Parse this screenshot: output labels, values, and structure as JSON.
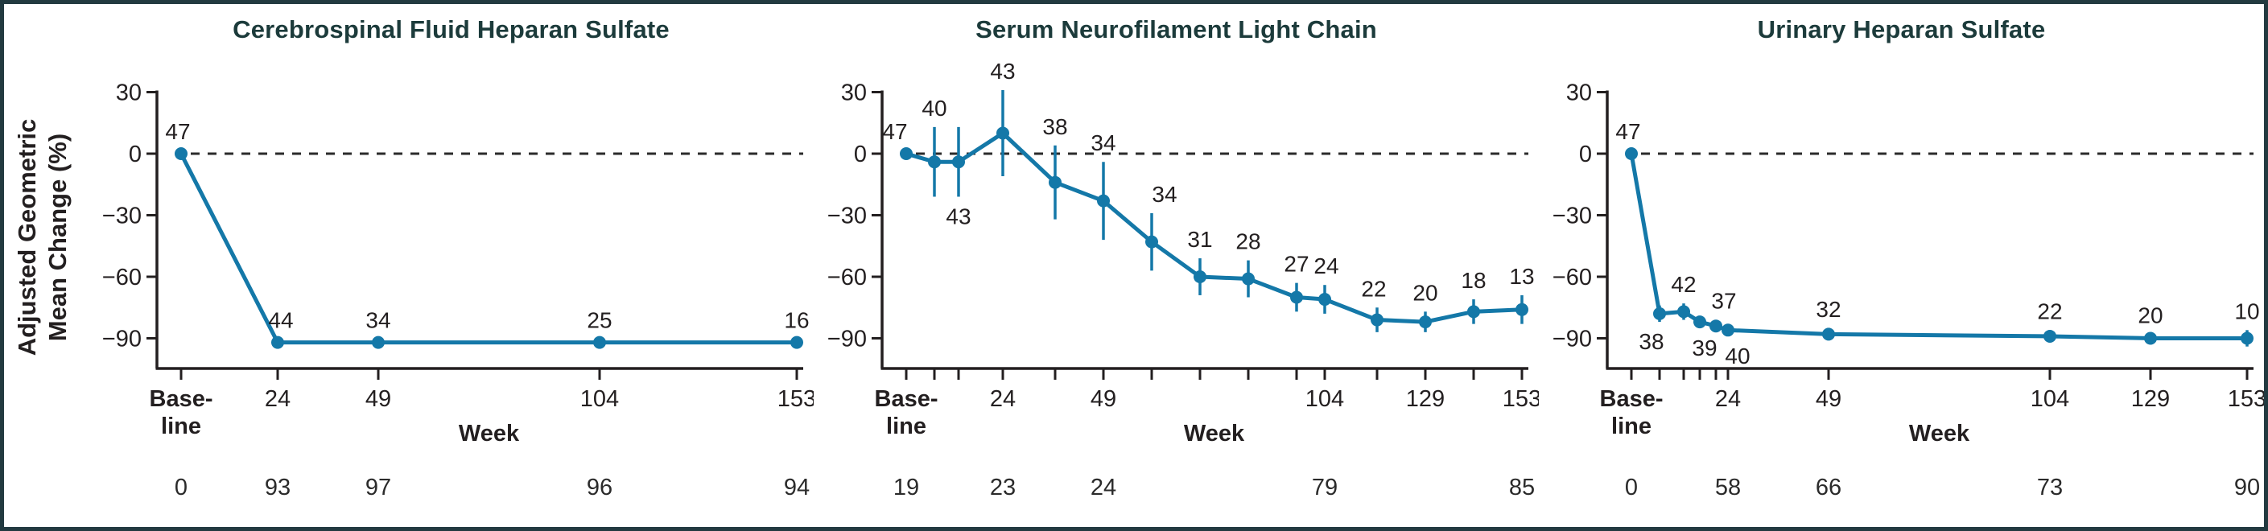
{
  "figure": {
    "y_axis_label_line1": "Adjusted Geometric",
    "y_axis_label_line2": "Mean Change (%)",
    "week_axis_label": "Week",
    "baseline_label_line1": "Base-",
    "baseline_label_line2": "line",
    "colors": {
      "line": "#1478a8",
      "text": "#231f20",
      "title": "#1c3b3b",
      "frame": "#223a40",
      "dashed": "#2b2b2b",
      "bottom_text": "#2b2b2b"
    },
    "y_ticks": [
      {
        "value": 30,
        "label": "30"
      },
      {
        "value": 0,
        "label": "0"
      },
      {
        "value": -30,
        "label": "−30"
      },
      {
        "value": -60,
        "label": "−60"
      },
      {
        "value": -90,
        "label": "−90"
      }
    ]
  },
  "chart_data": [
    {
      "type": "line",
      "title": "Cerebrospinal Fluid Heparan Sulfate",
      "xlabel": "Week",
      "ylabel": "Adjusted Geometric Mean Change (%)",
      "ylim": [
        -105,
        40
      ],
      "xlim": [
        0,
        153
      ],
      "x_ticks_labeled": [
        {
          "week": 0,
          "label": "Base-line"
        },
        {
          "week": 24,
          "label": "24"
        },
        {
          "week": 49,
          "label": "49"
        },
        {
          "week": 104,
          "label": "104"
        },
        {
          "week": 153,
          "label": "153"
        }
      ],
      "x_ticks_minor": [],
      "points": [
        {
          "week": 0,
          "value": 0,
          "n": "47",
          "err": 0,
          "label_pos": "above",
          "dx": -4
        },
        {
          "week": 24,
          "value": -92,
          "n": "44",
          "err": 0,
          "label_pos": "above",
          "dx": 4
        },
        {
          "week": 49,
          "value": -92,
          "n": "34",
          "err": 0,
          "label_pos": "above",
          "dx": 0
        },
        {
          "week": 104,
          "value": -92,
          "n": "25",
          "err": 0,
          "label_pos": "above",
          "dx": 0
        },
        {
          "week": 153,
          "value": -92,
          "n": "16",
          "err": 0,
          "label_pos": "above",
          "dx": 0
        }
      ],
      "bottom_values": [
        {
          "week": 0,
          "value": "0"
        },
        {
          "week": 24,
          "value": "93"
        },
        {
          "week": 49,
          "value": "97"
        },
        {
          "week": 104,
          "value": "96"
        },
        {
          "week": 153,
          "value": "94"
        }
      ]
    },
    {
      "type": "line",
      "title": "Serum Neurofilament Light Chain",
      "xlabel": "Week",
      "ylabel": "Adjusted Geometric Mean Change (%)",
      "ylim": [
        -105,
        40
      ],
      "xlim": [
        0,
        153
      ],
      "x_ticks_labeled": [
        {
          "week": 0,
          "label": "Base-line"
        },
        {
          "week": 24,
          "label": "24"
        },
        {
          "week": 49,
          "label": "49"
        },
        {
          "week": 104,
          "label": "104"
        },
        {
          "week": 129,
          "label": "129"
        },
        {
          "week": 153,
          "label": "153"
        }
      ],
      "x_ticks_minor": [
        7,
        13,
        37,
        61,
        73,
        85,
        97,
        117,
        141
      ],
      "points": [
        {
          "week": 0,
          "value": 0,
          "n": "47",
          "err": 0,
          "label_pos": "above",
          "dx": -14
        },
        {
          "week": 7,
          "value": -4,
          "n": "40",
          "err": 17,
          "label_pos": "above",
          "dx": 0
        },
        {
          "week": 13,
          "value": -4,
          "n": "43",
          "err": 17,
          "label_pos": "below",
          "dx": 0
        },
        {
          "week": 24,
          "value": 10,
          "n": "43",
          "err": 21,
          "label_pos": "above",
          "dx": 0
        },
        {
          "week": 37,
          "value": -14,
          "n": "38",
          "err": 18,
          "label_pos": "above",
          "dx": 0
        },
        {
          "week": 49,
          "value": -23,
          "n": "34",
          "err": 19,
          "label_pos": "above",
          "dx": 0
        },
        {
          "week": 61,
          "value": -43,
          "n": "34",
          "err": 14,
          "label_pos": "above",
          "dx": 16
        },
        {
          "week": 73,
          "value": -60,
          "n": "31",
          "err": 9,
          "label_pos": "above",
          "dx": 0
        },
        {
          "week": 85,
          "value": -61,
          "n": "28",
          "err": 9,
          "label_pos": "above",
          "dx": 0
        },
        {
          "week": 97,
          "value": -70,
          "n": "27",
          "err": 7,
          "label_pos": "above",
          "dx": 0
        },
        {
          "week": 104,
          "value": -71,
          "n": "24",
          "err": 7,
          "label_pos": "above",
          "dx": 2
        },
        {
          "week": 117,
          "value": -81,
          "n": "22",
          "err": 6,
          "label_pos": "above",
          "dx": -4
        },
        {
          "week": 129,
          "value": -82,
          "n": "20",
          "err": 5,
          "label_pos": "above",
          "dx": 0
        },
        {
          "week": 141,
          "value": -77,
          "n": "18",
          "err": 6,
          "label_pos": "above",
          "dx": 0
        },
        {
          "week": 153,
          "value": -76,
          "n": "13",
          "err": 7,
          "label_pos": "above",
          "dx": 0
        }
      ],
      "bottom_values": [
        {
          "week": 0,
          "value": "19"
        },
        {
          "week": 24,
          "value": "23"
        },
        {
          "week": 49,
          "value": "24"
        },
        {
          "week": 104,
          "value": "79"
        },
        {
          "week": 153,
          "value": "85"
        }
      ]
    },
    {
      "type": "line",
      "title": "Urinary Heparan Sulfate",
      "xlabel": "Week",
      "ylabel": "Adjusted Geometric Mean Change (%)",
      "ylim": [
        -105,
        40
      ],
      "xlim": [
        0,
        153
      ],
      "x_ticks_labeled": [
        {
          "week": 0,
          "label": "Base-line"
        },
        {
          "week": 24,
          "label": "24"
        },
        {
          "week": 49,
          "label": "49"
        },
        {
          "week": 104,
          "label": "104"
        },
        {
          "week": 129,
          "label": "129"
        },
        {
          "week": 153,
          "label": "153"
        }
      ],
      "x_ticks_minor": [
        7,
        13,
        17,
        21
      ],
      "points": [
        {
          "week": 0,
          "value": 0,
          "n": "47",
          "err": 0,
          "label_pos": "above",
          "dx": -4
        },
        {
          "week": 7,
          "value": -78,
          "n": "38",
          "err": 4,
          "label_pos": "below",
          "dx": -10
        },
        {
          "week": 13,
          "value": -77,
          "n": "42",
          "err": 4,
          "label_pos": "above",
          "dx": 0
        },
        {
          "week": 17,
          "value": -82,
          "n": "39",
          "err": 3,
          "label_pos": "below",
          "dx": 6
        },
        {
          "week": 21,
          "value": -84,
          "n": "37",
          "err": 3,
          "label_pos": "above",
          "dx": 10
        },
        {
          "week": 24,
          "value": -86,
          "n": "40",
          "err": 3,
          "label_pos": "below",
          "dx": 12
        },
        {
          "week": 49,
          "value": -88,
          "n": "32",
          "err": 3,
          "label_pos": "above",
          "dx": 0
        },
        {
          "week": 104,
          "value": -89,
          "n": "22",
          "err": 3,
          "label_pos": "above",
          "dx": 0
        },
        {
          "week": 129,
          "value": -90,
          "n": "20",
          "err": 2,
          "label_pos": "above",
          "dx": 0
        },
        {
          "week": 153,
          "value": -90,
          "n": "10",
          "err": 4,
          "label_pos": "above",
          "dx": 0
        }
      ],
      "bottom_values": [
        {
          "week": 0,
          "value": "0"
        },
        {
          "week": 24,
          "value": "58"
        },
        {
          "week": 49,
          "value": "66"
        },
        {
          "week": 104,
          "value": "73"
        },
        {
          "week": 153,
          "value": "90"
        }
      ]
    }
  ]
}
